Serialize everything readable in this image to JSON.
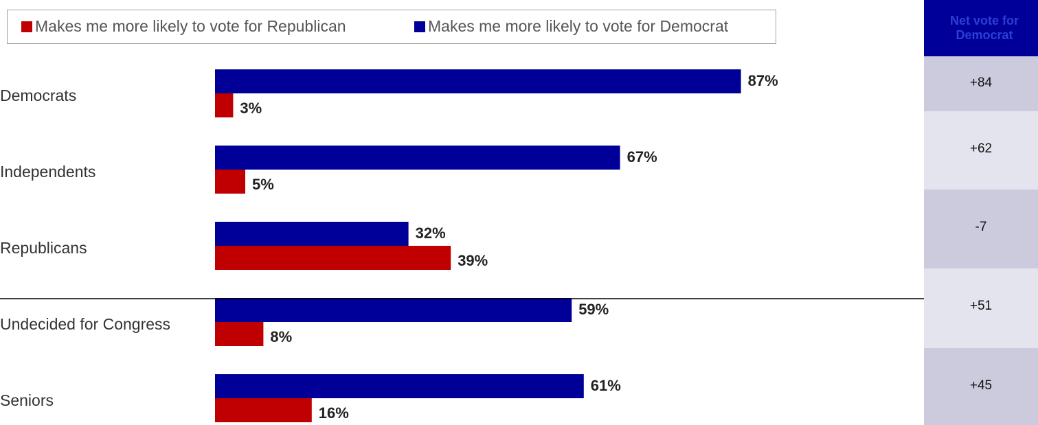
{
  "legend": {
    "republican_label": "Makes me more likely to vote for Republican",
    "democrat_label": "Makes me more likely to vote for Democrat",
    "republican_color": "#c00000",
    "democrat_color": "#000099"
  },
  "net_header": "Net vote for Democrat",
  "chart_data": {
    "type": "bar",
    "orientation": "horizontal",
    "categories": [
      "Democrats",
      "Independents",
      "Republicans",
      "Undecided for Congress",
      "Seniors"
    ],
    "series": [
      {
        "name": "Makes me more likely to vote for Democrat",
        "values": [
          87,
          67,
          32,
          59,
          61
        ],
        "color": "#000099"
      },
      {
        "name": "Makes me more likely to vote for Republican",
        "values": [
          3,
          5,
          39,
          8,
          16
        ],
        "color": "#c00000"
      }
    ],
    "value_labels_democrat": [
      "87%",
      "67%",
      "32%",
      "59%",
      "61%"
    ],
    "value_labels_republican": [
      "3%",
      "5%",
      "39%",
      "8%",
      "16%"
    ],
    "net_values": [
      "+84",
      "+62",
      "-7",
      "+51",
      "+45"
    ],
    "divider_after_category": "Republicans"
  }
}
